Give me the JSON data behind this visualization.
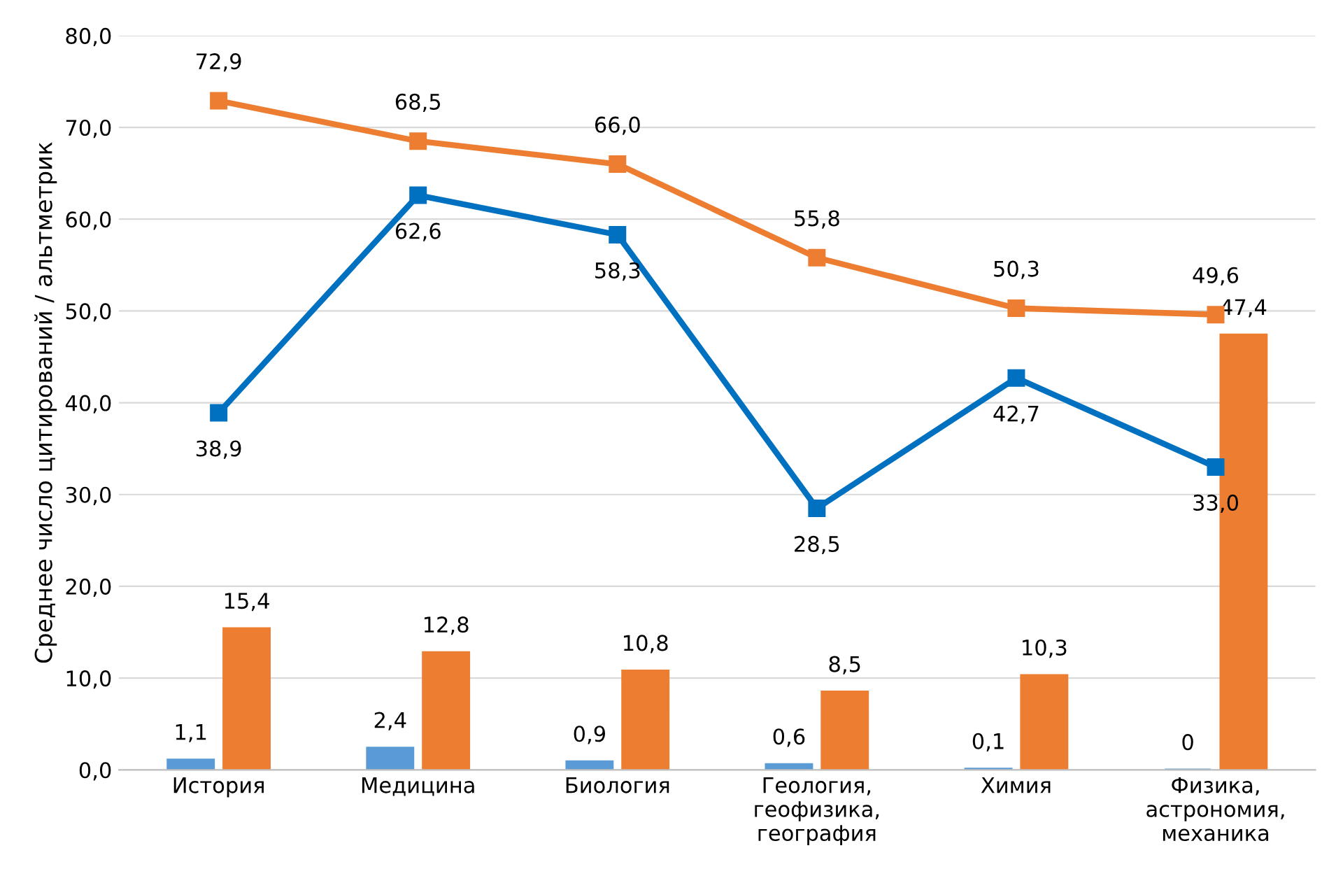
{
  "chart_data": {
    "type": "bar",
    "ylabel": "Среднее число цитирований / альтметрик",
    "categories": [
      "История",
      "Медицина",
      "Биология",
      "Геология,\nгеофизика,\nгеография",
      "Химия",
      "Физика,\nастрономия,\nмеханика"
    ],
    "series": [
      {
        "color": "#5b9bd5",
        "values": [
          1.1,
          2.4,
          0.9,
          0.6,
          0.1,
          0
        ],
        "value_labels": [
          "1,1",
          "2,4",
          "0,9",
          "0,6",
          "0,1",
          "0"
        ]
      },
      {
        "color": "#ed7d31",
        "values": [
          15.4,
          12.8,
          10.8,
          8.5,
          10.3,
          47.4
        ],
        "value_labels": [
          "15,4",
          "12,8",
          "10,8",
          "8,5",
          "10,3",
          "47,4"
        ]
      },
      {
        "type": "line",
        "color": "#0070c0",
        "values": [
          38.9,
          62.6,
          58.3,
          28.5,
          42.7,
          33.0
        ],
        "value_labels": [
          "38,9",
          "62,6",
          "58,3",
          "28,5",
          "42,7",
          "33,0"
        ]
      },
      {
        "type": "line",
        "color": "#ed7d31",
        "values": [
          72.9,
          68.5,
          66.0,
          55.8,
          50.3,
          49.6
        ],
        "value_labels": [
          "72,9",
          "68,5",
          "66,0",
          "55,8",
          "50,3",
          "49,6"
        ]
      }
    ],
    "ylim": [
      0,
      80
    ],
    "yticks": [
      {
        "value": 0,
        "label": "0,0"
      },
      {
        "value": 10,
        "label": "10,0"
      },
      {
        "value": 20,
        "label": "20,0"
      },
      {
        "value": 30,
        "label": "30,0"
      },
      {
        "value": 40,
        "label": "40,0"
      },
      {
        "value": 50,
        "label": "50,0"
      },
      {
        "value": 60,
        "label": "60,0"
      },
      {
        "value": 70,
        "label": "70,0"
      },
      {
        "value": 80,
        "label": "80,0"
      }
    ],
    "grid": "y",
    "marker": "square",
    "line_style": "solid"
  }
}
